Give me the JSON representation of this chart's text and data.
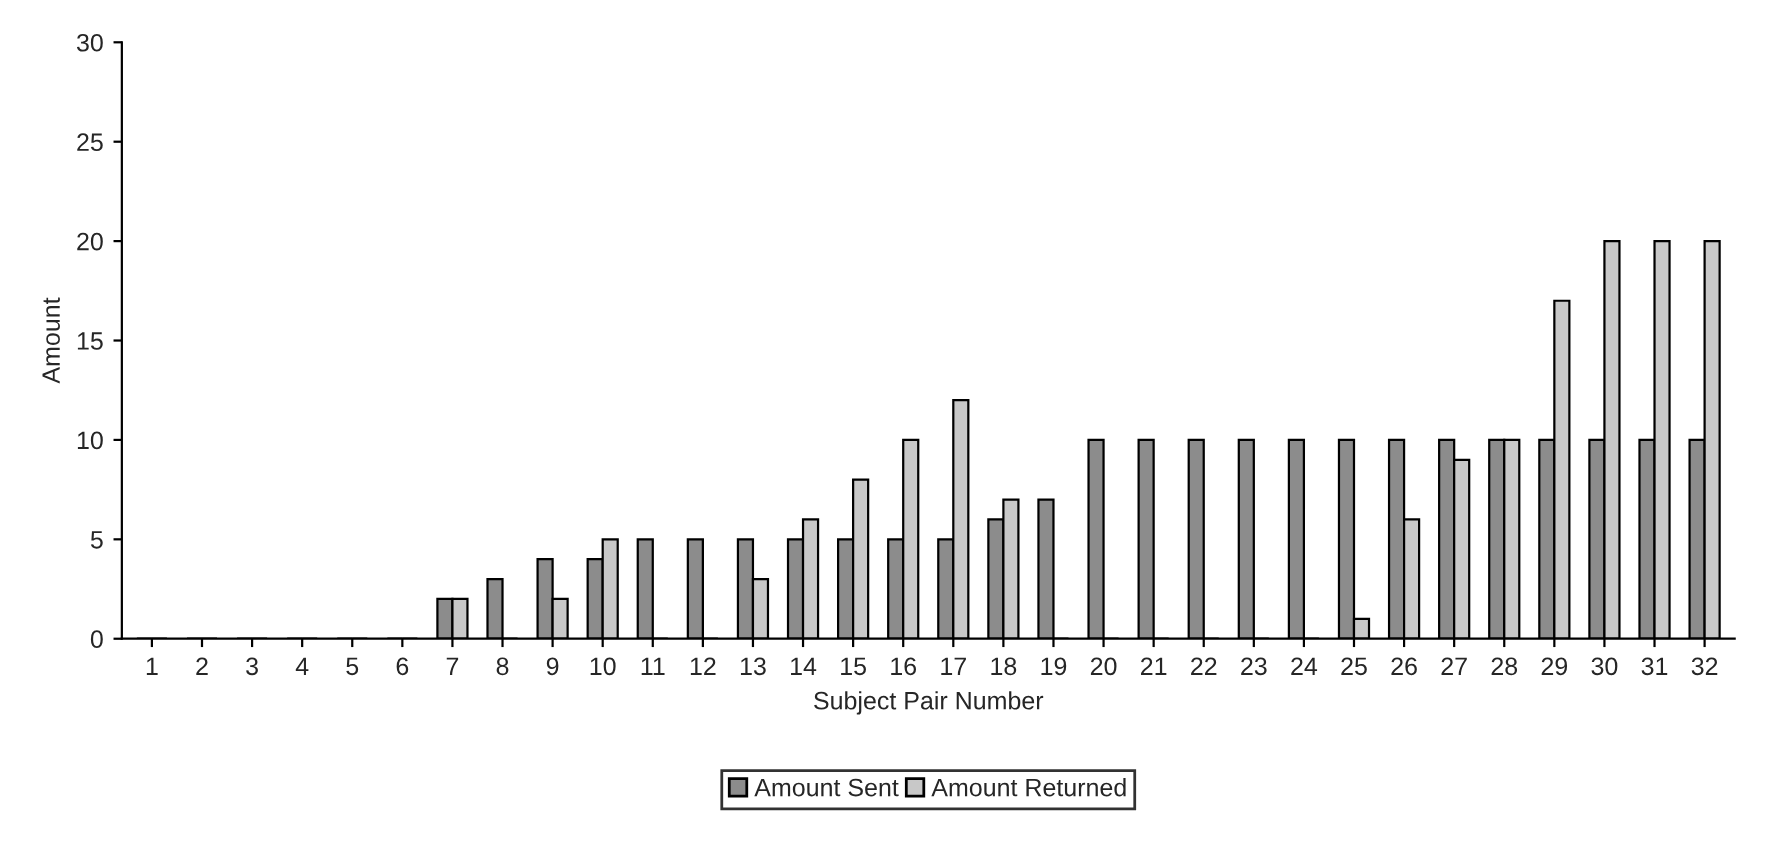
{
  "chart_data": {
    "type": "bar",
    "xlabel": "Subject Pair Number",
    "ylabel": "Amount",
    "categories": [
      "1",
      "2",
      "3",
      "4",
      "5",
      "6",
      "7",
      "8",
      "9",
      "10",
      "11",
      "12",
      "13",
      "14",
      "15",
      "16",
      "17",
      "18",
      "19",
      "20",
      "21",
      "22",
      "23",
      "24",
      "25",
      "26",
      "27",
      "28",
      "29",
      "30",
      "31",
      "32"
    ],
    "series": [
      {
        "name": "Amount Sent",
        "color": "#8c8c8c",
        "values": [
          0,
          0,
          0,
          0,
          0,
          0,
          2,
          3,
          4,
          4,
          5,
          5,
          5,
          5,
          5,
          5,
          5,
          6,
          7,
          10,
          10,
          10,
          10,
          10,
          10,
          10,
          10,
          10,
          10,
          10,
          10,
          10
        ]
      },
      {
        "name": "Amount Returned",
        "color": "#c8c8c8",
        "values": [
          0,
          0,
          0,
          0,
          0,
          0,
          2,
          0,
          2,
          5,
          0,
          0,
          3,
          6,
          8,
          10,
          12,
          7,
          0,
          0,
          0,
          0,
          0,
          0,
          1,
          6,
          9,
          10,
          17,
          20,
          20,
          20
        ]
      }
    ],
    "ylim": [
      0,
      30
    ],
    "yticks": [
      0,
      5,
      10,
      15,
      20,
      25,
      30
    ],
    "grid": false,
    "legend": "bottom"
  }
}
